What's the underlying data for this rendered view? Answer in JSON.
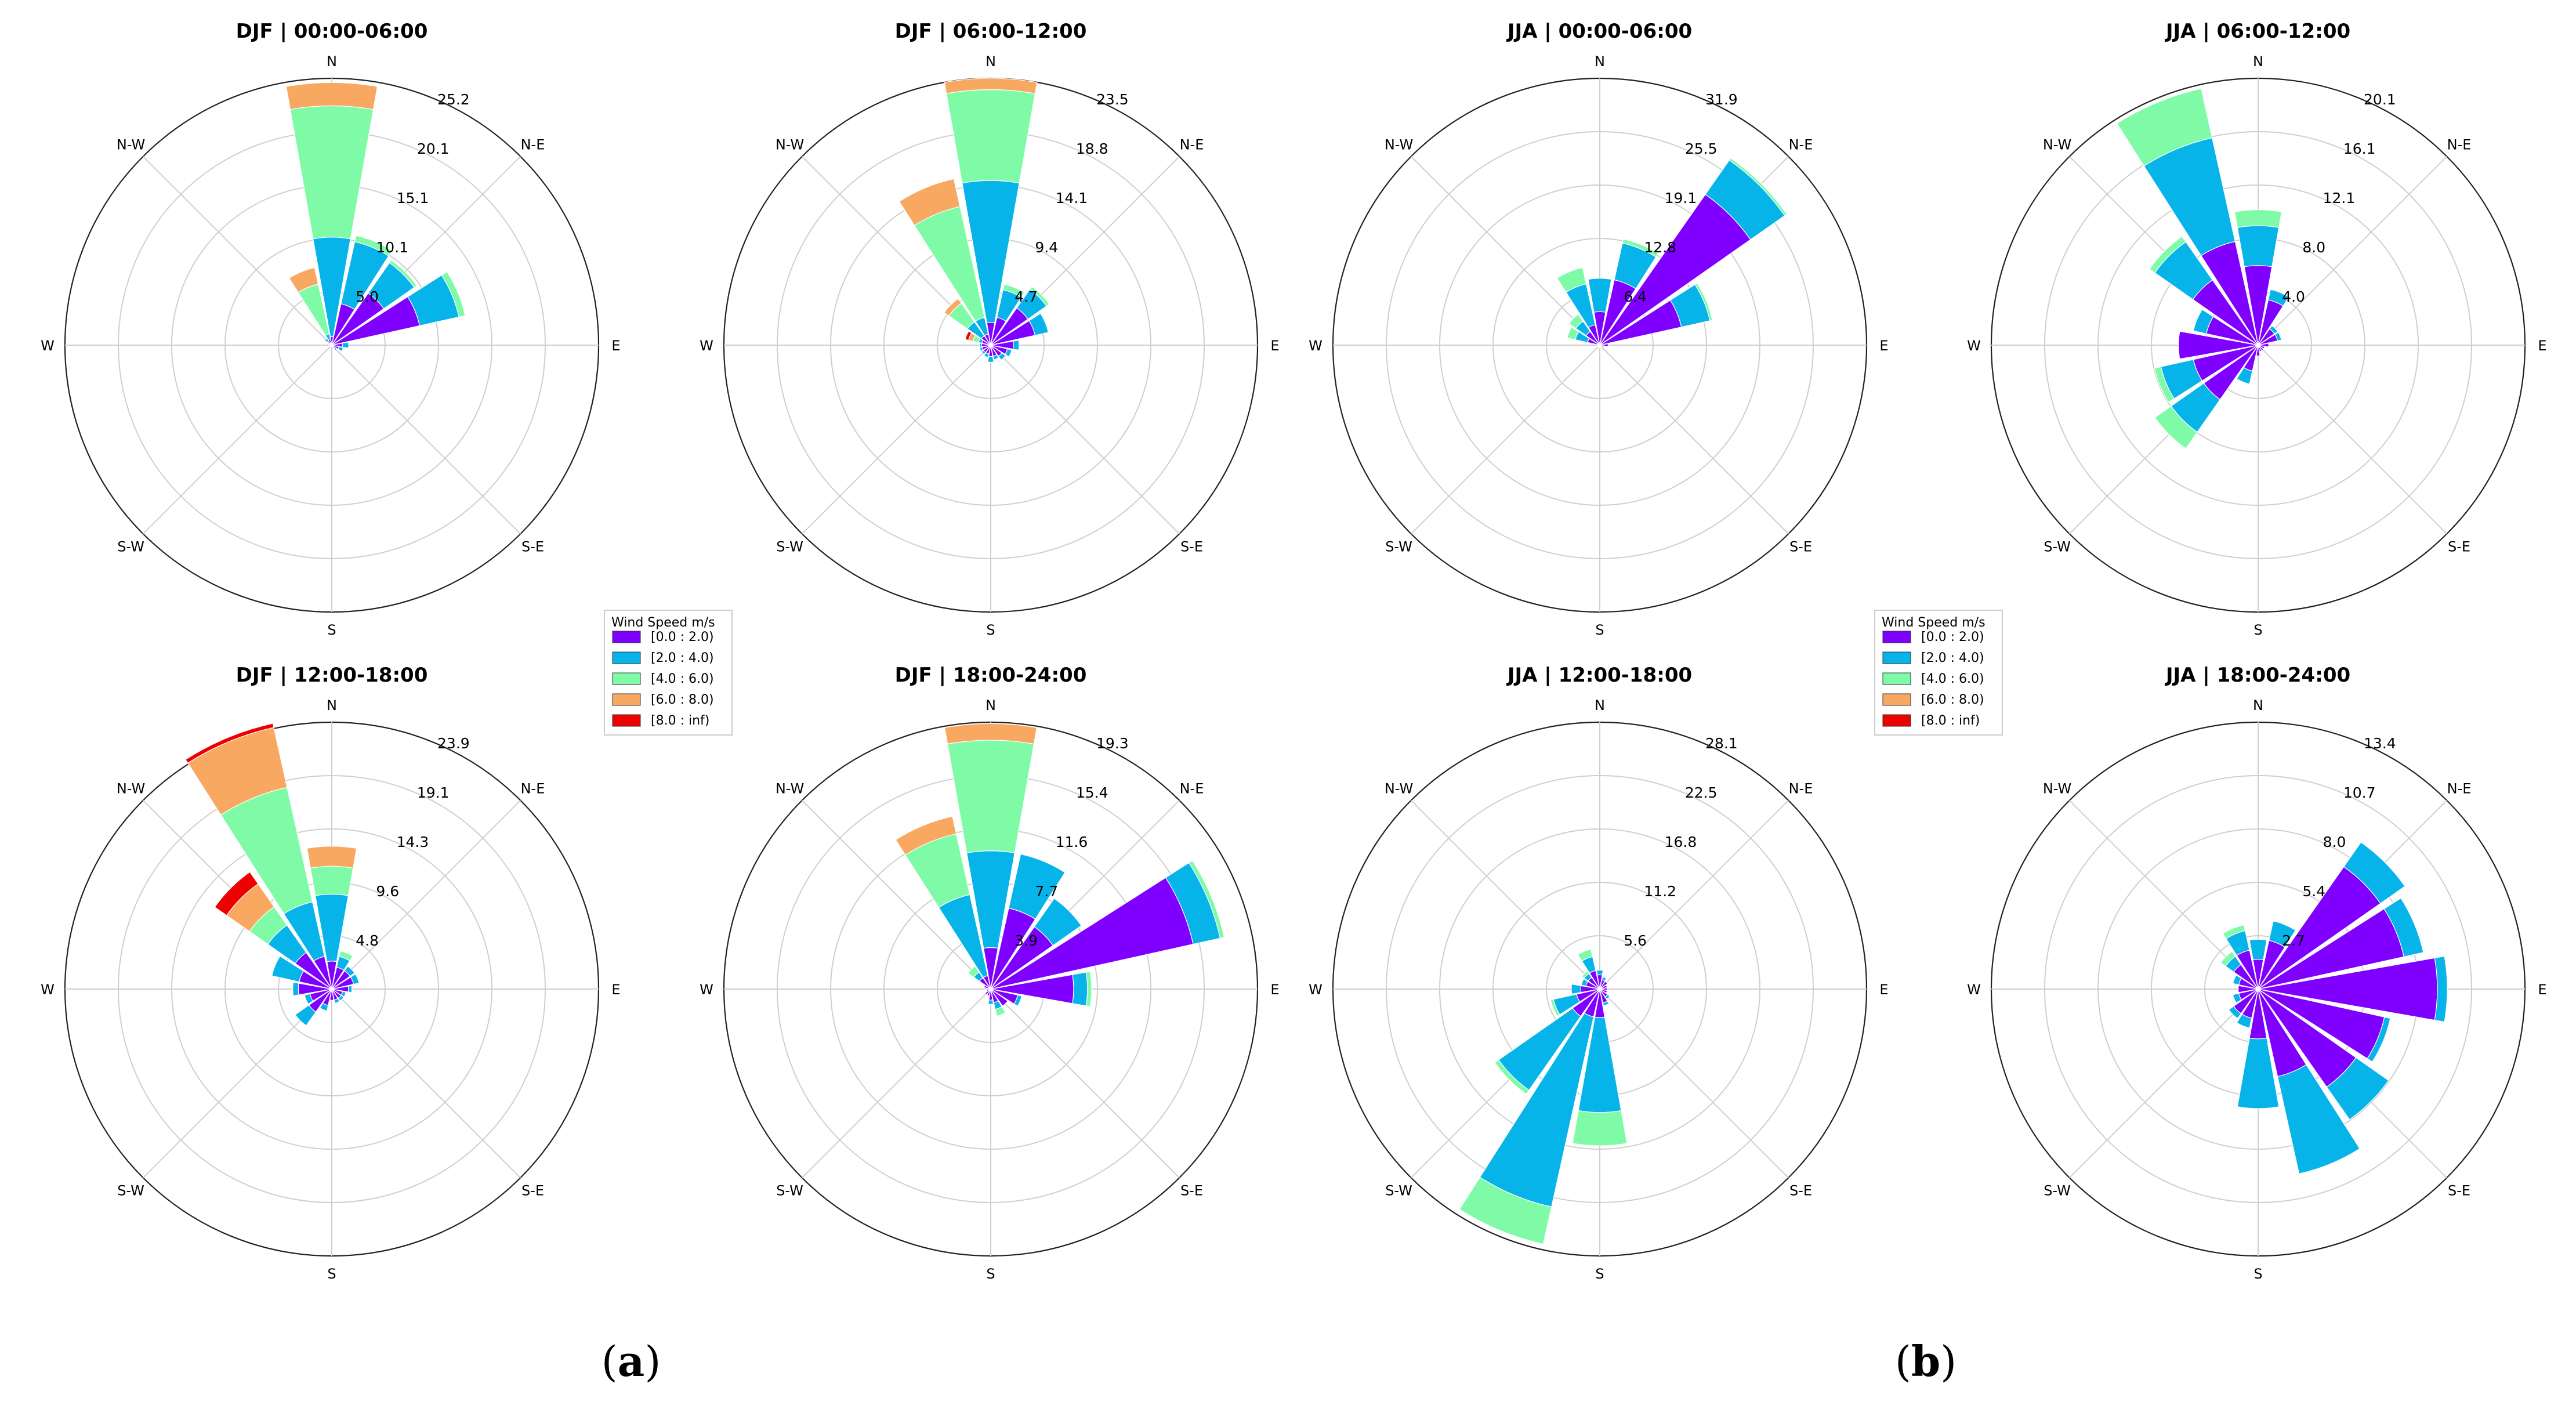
{
  "figure_labels": [
    "a",
    "b"
  ],
  "bins": [
    {
      "label": "[0.0 : 2.0)",
      "color": "#7f00ff"
    },
    {
      "label": "[2.0 : 4.0)",
      "color": "#06b4ea"
    },
    {
      "label": "[4.0 : 6.0)",
      "color": "#7ffba8"
    },
    {
      "label": "[6.0 : 8.0)",
      "color": "#f9a862"
    },
    {
      "label": "[8.0 : inf)",
      "color": "#ec0000"
    }
  ],
  "legend_title": "Wind Speed m/s",
  "compass": [
    "N",
    "N-E",
    "E",
    "S-E",
    "S",
    "S-W",
    "W",
    "N-W"
  ],
  "chart_data": [
    {
      "type": "windrose",
      "title": "DJF | 00:00-06:00",
      "rmax": 25.2,
      "ring_labels": [
        "5.0",
        "10.1",
        "15.1",
        "20.1",
        "25.2"
      ],
      "sectors_deg": [
        0,
        22.5,
        45,
        67.5,
        90,
        112.5,
        135,
        157.5,
        180,
        202.5,
        225,
        247.5,
        270,
        292.5,
        315,
        337.5
      ],
      "stacks": [
        [
          0.8,
          9.4,
          12.4,
          2.2,
          0.0
        ],
        [
          4.0,
          6.0,
          0.6,
          0.0,
          0.0
        ],
        [
          6.0,
          3.5,
          0.3,
          0.0,
          0.0
        ],
        [
          8.5,
          3.8,
          0.6,
          0.0,
          0.0
        ],
        [
          1.0,
          0.6,
          0.0,
          0.0,
          0.0
        ],
        [
          0.7,
          0.4,
          0.0,
          0.0,
          0.0
        ],
        [
          0.4,
          0.2,
          0.0,
          0.0,
          0.0
        ],
        [
          0.3,
          0.0,
          0.0,
          0.0,
          0.0
        ],
        [
          0.2,
          0.0,
          0.0,
          0.0,
          0.0
        ],
        [
          0.2,
          0.0,
          0.0,
          0.0,
          0.0
        ],
        [
          0.2,
          0.0,
          0.0,
          0.0,
          0.0
        ],
        [
          0.2,
          0.0,
          0.0,
          0.0,
          0.0
        ],
        [
          0.3,
          0.0,
          0.0,
          0.0,
          0.0
        ],
        [
          0.3,
          0.0,
          0.0,
          0.0,
          0.0
        ],
        [
          0.5,
          0.3,
          0.0,
          0.0,
          0.0
        ],
        [
          0.6,
          0.5,
          4.8,
          1.6,
          0.0
        ]
      ]
    },
    {
      "type": "windrose",
      "title": "DJF | 06:00-12:00",
      "rmax": 23.5,
      "ring_labels": [
        "4.7",
        "9.4",
        "14.1",
        "18.8",
        "23.5"
      ],
      "sectors_deg": [
        0,
        22.5,
        45,
        67.5,
        90,
        112.5,
        135,
        157.5,
        180,
        202.5,
        225,
        247.5,
        270,
        292.5,
        315,
        337.5
      ],
      "stacks": [
        [
          2.0,
          12.5,
          8.0,
          1.0,
          0.0
        ],
        [
          2.5,
          2.5,
          0.5,
          0.0,
          0.0
        ],
        [
          4.0,
          2.0,
          0.3,
          0.0,
          0.0
        ],
        [
          4.0,
          1.2,
          0.0,
          0.0,
          0.0
        ],
        [
          2.0,
          0.5,
          0.0,
          0.0,
          0.0
        ],
        [
          1.5,
          0.4,
          0.0,
          0.0,
          0.0
        ],
        [
          1.2,
          0.4,
          0.0,
          0.0,
          0.0
        ],
        [
          1.0,
          0.3,
          0.0,
          0.0,
          0.0
        ],
        [
          1.0,
          0.5,
          0.0,
          0.0,
          0.0
        ],
        [
          0.8,
          0.3,
          0.0,
          0.0,
          0.0
        ],
        [
          0.8,
          0.2,
          0.0,
          0.0,
          0.0
        ],
        [
          0.8,
          0.2,
          0.0,
          0.0,
          0.0
        ],
        [
          0.8,
          0.2,
          0.0,
          0.0,
          0.0
        ],
        [
          0.8,
          0.3,
          0.5,
          0.4,
          0.3
        ],
        [
          1.0,
          1.5,
          2.0,
          0.5,
          0.0
        ],
        [
          1.0,
          1.5,
          10.0,
          2.5,
          0.0
        ]
      ]
    },
    {
      "type": "windrose",
      "title": "JJA | 00:00-06:00",
      "rmax": 31.9,
      "ring_labels": [
        "6.4",
        "12.8",
        "19.1",
        "25.5",
        "31.9"
      ],
      "sectors_deg": [
        0,
        22.5,
        45,
        67.5,
        90,
        112.5,
        135,
        157.5,
        180,
        202.5,
        225,
        247.5,
        270,
        292.5,
        315,
        337.5
      ],
      "stacks": [
        [
          4.0,
          4.0,
          0.0,
          0.0,
          0.0
        ],
        [
          8.0,
          4.5,
          0.5,
          0.0,
          0.0
        ],
        [
          22.0,
          5.0,
          0.3,
          0.0,
          0.0
        ],
        [
          10.0,
          3.5,
          0.3,
          0.0,
          0.0
        ],
        [
          1.0,
          0.0,
          0.0,
          0.0,
          0.0
        ],
        [
          0.5,
          0.0,
          0.0,
          0.0,
          0.0
        ],
        [
          0.3,
          0.0,
          0.0,
          0.0,
          0.0
        ],
        [
          0.3,
          0.0,
          0.0,
          0.0,
          0.0
        ],
        [
          0.3,
          0.0,
          0.0,
          0.0,
          0.0
        ],
        [
          0.3,
          0.0,
          0.0,
          0.0,
          0.0
        ],
        [
          0.3,
          0.0,
          0.0,
          0.0,
          0.0
        ],
        [
          0.3,
          0.0,
          0.0,
          0.0,
          0.0
        ],
        [
          0.3,
          0.0,
          0.0,
          0.0,
          0.0
        ],
        [
          1.5,
          1.5,
          1.0,
          0.0,
          0.0
        ],
        [
          2.0,
          1.5,
          1.0,
          0.0,
          0.0
        ],
        [
          2.5,
          5.0,
          2.0,
          0.0,
          0.0
        ]
      ]
    },
    {
      "type": "windrose",
      "title": "JJA | 06:00-12:00",
      "rmax": 20.1,
      "ring_labels": [
        "4.0",
        "8.0",
        "12.1",
        "16.1",
        "20.1"
      ],
      "sectors_deg": [
        0,
        22.5,
        45,
        67.5,
        90,
        112.5,
        135,
        157.5,
        180,
        202.5,
        225,
        247.5,
        270,
        292.5,
        315,
        337.5
      ],
      "stacks": [
        [
          6.0,
          3.0,
          1.2,
          0.0,
          0.0
        ],
        [
          3.5,
          0.8,
          0.0,
          0.0,
          0.0
        ],
        [
          1.5,
          0.3,
          0.0,
          0.0,
          0.0
        ],
        [
          1.5,
          0.3,
          0.0,
          0.0,
          0.0
        ],
        [
          0.8,
          0.0,
          0.0,
          0.0,
          0.0
        ],
        [
          0.5,
          0.0,
          0.0,
          0.0,
          0.0
        ],
        [
          0.5,
          0.0,
          0.0,
          0.0,
          0.0
        ],
        [
          0.5,
          0.0,
          0.0,
          0.0,
          0.0
        ],
        [
          0.8,
          0.0,
          0.0,
          0.0,
          0.0
        ],
        [
          2.0,
          1.0,
          0.0,
          0.0,
          0.0
        ],
        [
          5.0,
          3.0,
          1.5,
          0.0,
          0.0
        ],
        [
          5.0,
          2.5,
          0.5,
          0.0,
          0.0
        ],
        [
          6.0,
          0.0,
          0.0,
          0.0,
          0.0
        ],
        [
          4.0,
          1.0,
          0.0,
          0.0,
          0.0
        ],
        [
          6.0,
          3.5,
          0.5,
          0.0,
          0.0
        ],
        [
          8.0,
          8.0,
          3.8,
          0.0,
          0.0
        ]
      ]
    },
    {
      "type": "windrose",
      "title": "DJF | 12:00-18:00",
      "rmax": 23.9,
      "ring_labels": [
        "4.8",
        "9.6",
        "14.3",
        "19.1",
        "23.9"
      ],
      "sectors_deg": [
        0,
        22.5,
        45,
        67.5,
        90,
        112.5,
        135,
        157.5,
        180,
        202.5,
        225,
        247.5,
        270,
        292.5,
        315,
        337.5
      ],
      "stacks": [
        [
          2.5,
          6.0,
          2.5,
          1.8,
          0.0
        ],
        [
          2.0,
          1.0,
          0.5,
          0.0,
          0.0
        ],
        [
          2.0,
          0.5,
          0.0,
          0.0,
          0.0
        ],
        [
          2.0,
          0.5,
          0.0,
          0.0,
          0.0
        ],
        [
          1.5,
          0.3,
          0.0,
          0.0,
          0.0
        ],
        [
          1.0,
          0.3,
          0.0,
          0.0,
          0.0
        ],
        [
          1.0,
          0.3,
          0.0,
          0.0,
          0.0
        ],
        [
          1.0,
          0.3,
          0.0,
          0.0,
          0.0
        ],
        [
          1.0,
          0.0,
          0.0,
          0.0,
          0.0
        ],
        [
          1.5,
          0.5,
          0.0,
          0.0,
          0.0
        ],
        [
          2.5,
          1.5,
          0.0,
          0.0,
          0.0
        ],
        [
          2.0,
          0.5,
          0.0,
          0.0,
          0.0
        ],
        [
          3.0,
          0.5,
          0.0,
          0.0,
          0.0
        ],
        [
          3.0,
          2.5,
          0.0,
          0.0,
          0.0
        ],
        [
          4.0,
          3.0,
          2.0,
          2.5,
          1.3
        ],
        [
          3.0,
          5.0,
          10.5,
          5.5,
          0.5
        ]
      ]
    },
    {
      "type": "windrose",
      "title": "DJF | 18:00-24:00",
      "rmax": 19.3,
      "ring_labels": [
        "3.9",
        "7.7",
        "11.6",
        "15.4",
        "19.3"
      ],
      "sectors_deg": [
        0,
        22.5,
        45,
        67.5,
        90,
        112.5,
        135,
        157.5,
        180,
        202.5,
        225,
        247.5,
        270,
        292.5,
        315,
        337.5
      ],
      "stacks": [
        [
          3.0,
          7.0,
          8.0,
          1.2,
          0.0
        ],
        [
          6.0,
          4.0,
          0.0,
          0.0,
          0.0
        ],
        [
          5.5,
          2.5,
          0.0,
          0.0,
          0.0
        ],
        [
          15.0,
          2.0,
          0.3,
          0.0,
          0.0
        ],
        [
          6.0,
          1.0,
          0.3,
          0.0,
          0.0
        ],
        [
          2.0,
          0.3,
          0.0,
          0.0,
          0.0
        ],
        [
          1.5,
          0.0,
          0.0,
          0.0,
          0.0
        ],
        [
          1.0,
          0.5,
          0.5,
          0.0,
          0.0
        ],
        [
          0.8,
          0.3,
          0.0,
          0.0,
          0.0
        ],
        [
          0.5,
          0.0,
          0.0,
          0.0,
          0.0
        ],
        [
          0.5,
          0.0,
          0.0,
          0.0,
          0.0
        ],
        [
          0.3,
          0.0,
          0.0,
          0.0,
          0.0
        ],
        [
          0.3,
          0.0,
          0.0,
          0.0,
          0.0
        ],
        [
          0.5,
          0.0,
          0.0,
          0.0,
          0.0
        ],
        [
          1.0,
          0.5,
          0.5,
          0.0,
          0.0
        ],
        [
          1.0,
          6.0,
          4.5,
          1.3,
          0.0
        ]
      ]
    },
    {
      "type": "windrose",
      "title": "JJA | 12:00-18:00",
      "rmax": 28.1,
      "ring_labels": [
        "5.6",
        "11.2",
        "16.8",
        "22.5",
        "28.1"
      ],
      "sectors_deg": [
        0,
        22.5,
        45,
        67.5,
        90,
        112.5,
        135,
        157.5,
        180,
        202.5,
        225,
        247.5,
        270,
        292.5,
        315,
        337.5
      ],
      "stacks": [
        [
          1.5,
          0.5,
          0.0,
          0.0,
          0.0
        ],
        [
          1.0,
          0.3,
          0.0,
          0.0,
          0.0
        ],
        [
          1.0,
          0.0,
          0.0,
          0.0,
          0.0
        ],
        [
          0.8,
          0.0,
          0.0,
          0.0,
          0.0
        ],
        [
          0.8,
          0.0,
          0.0,
          0.0,
          0.0
        ],
        [
          0.8,
          0.0,
          0.0,
          0.0,
          0.0
        ],
        [
          1.0,
          0.3,
          0.0,
          0.0,
          0.0
        ],
        [
          1.5,
          0.3,
          0.0,
          0.0,
          0.0
        ],
        [
          3.0,
          10.0,
          3.5,
          0.0,
          0.0
        ],
        [
          3.0,
          20.5,
          4.0,
          0.0,
          0.0
        ],
        [
          3.5,
          9.5,
          0.5,
          0.0,
          0.0
        ],
        [
          2.5,
          2.5,
          0.3,
          0.0,
          0.0
        ],
        [
          2.0,
          1.0,
          0.0,
          0.0,
          0.0
        ],
        [
          1.5,
          0.5,
          0.0,
          0.0,
          0.0
        ],
        [
          1.5,
          0.5,
          0.3,
          0.0,
          0.0
        ],
        [
          2.0,
          1.5,
          0.8,
          0.0,
          0.0
        ]
      ]
    },
    {
      "type": "windrose",
      "title": "JJA | 18:00-24:00",
      "rmax": 13.4,
      "ring_labels": [
        "2.7",
        "5.4",
        "8.0",
        "10.7",
        "13.4"
      ],
      "sectors_deg": [
        0,
        22.5,
        45,
        67.5,
        90,
        112.5,
        135,
        157.5,
        180,
        202.5,
        225,
        247.5,
        270,
        292.5,
        315,
        337.5
      ],
      "stacks": [
        [
          1.5,
          1.0,
          0.0,
          0.0,
          0.0
        ],
        [
          2.5,
          1.0,
          0.0,
          0.0,
          0.0
        ],
        [
          7.5,
          1.5,
          0.0,
          0.0,
          0.0
        ],
        [
          7.5,
          1.0,
          0.0,
          0.0,
          0.0
        ],
        [
          9.0,
          0.5,
          0.0,
          0.0,
          0.0
        ],
        [
          6.5,
          0.3,
          0.0,
          0.0,
          0.0
        ],
        [
          6.0,
          2.0,
          0.0,
          0.0,
          0.0
        ],
        [
          4.5,
          5.0,
          0.0,
          0.0,
          0.0
        ],
        [
          2.5,
          3.5,
          0.0,
          0.0,
          0.0
        ],
        [
          1.5,
          0.5,
          0.0,
          0.0,
          0.0
        ],
        [
          1.5,
          0.3,
          0.0,
          0.0,
          0.0
        ],
        [
          1.0,
          0.3,
          0.0,
          0.0,
          0.0
        ],
        [
          1.0,
          0.0,
          0.0,
          0.0,
          0.0
        ],
        [
          1.0,
          0.3,
          0.0,
          0.0,
          0.0
        ],
        [
          1.5,
          0.5,
          0.3,
          0.0,
          0.0
        ],
        [
          2.0,
          1.0,
          0.3,
          0.0,
          0.0
        ]
      ]
    }
  ]
}
